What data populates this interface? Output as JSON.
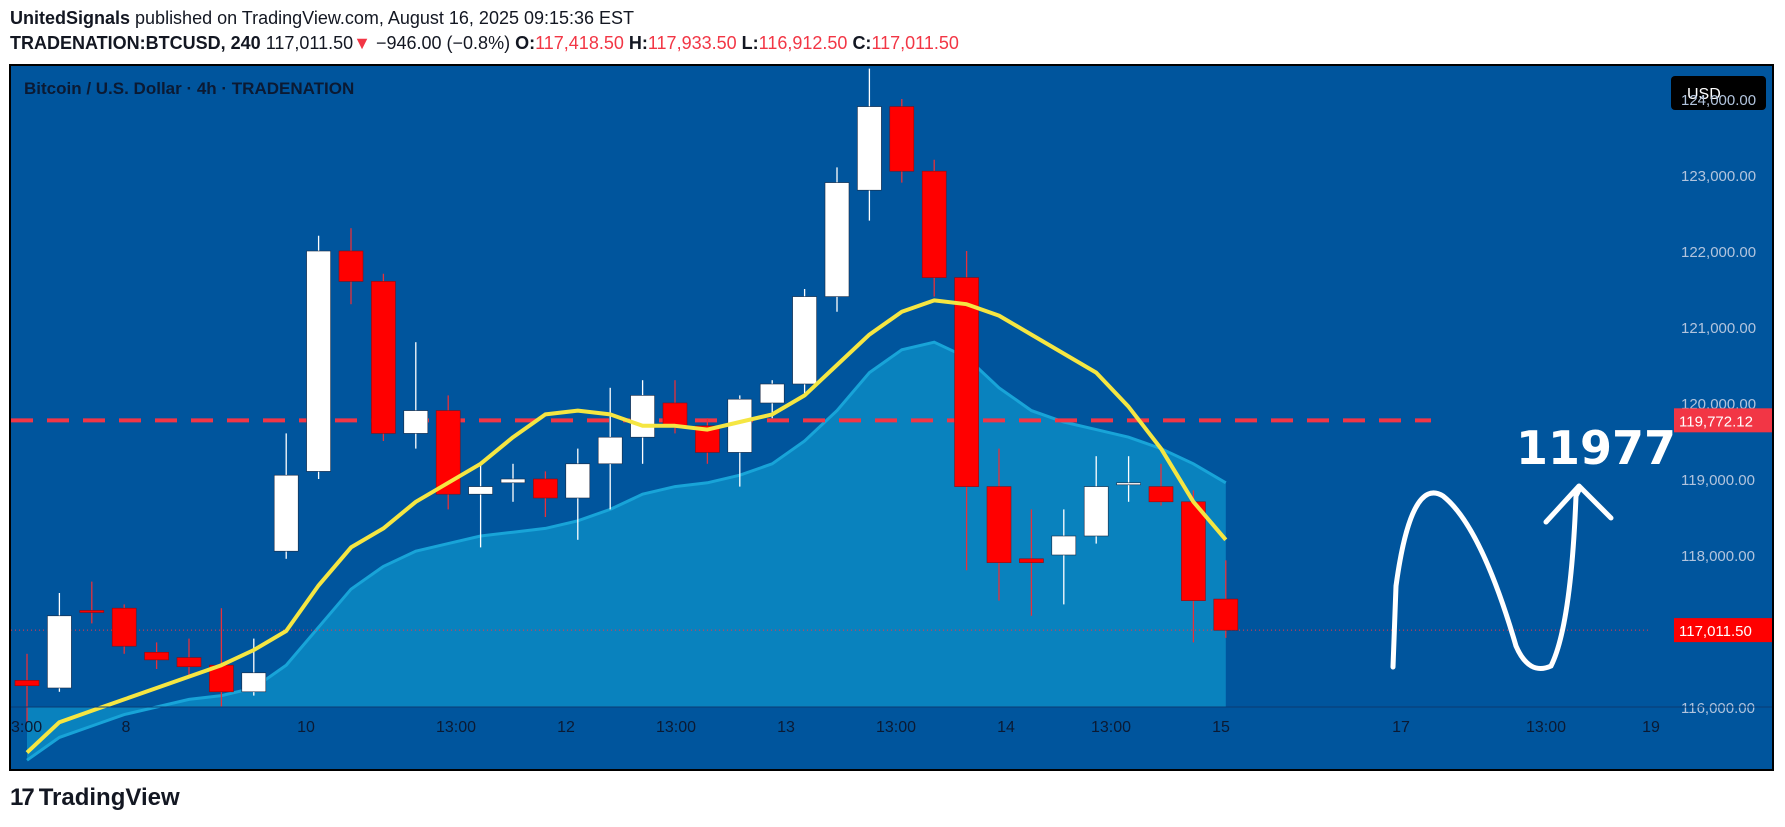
{
  "header": {
    "author": "UnitedSignals",
    "published_text": "published on TradingView.com, August 16, 2025 09:15:36 EST",
    "symbol": "TRADENATION:BTCUSD, 240",
    "last": "117,011.50",
    "change_arrow": "▼",
    "change": "−946.00 (−0.8%)",
    "o_label": "O:",
    "o_value": "117,418.50",
    "h_label": "H:",
    "h_value": "117,933.50",
    "l_label": "L:",
    "l_value": "116,912.50",
    "c_label": "C:",
    "c_value": "117,011.50"
  },
  "chart_title": "Bitcoin / U.S. Dollar · 4h · TRADENATION",
  "currency_button": "USD",
  "annotation_text": "11977",
  "footer_brand": "TradingView",
  "colors": {
    "background": "#00559d",
    "bull": "#ffffff",
    "bear": "#ff0000",
    "ma_fast": "#f5e642",
    "ma_area": "#0a8bc4",
    "level_line": "#f23645"
  },
  "chart_data": {
    "type": "candlestick",
    "ylim": [
      115400,
      124600
    ],
    "y_ticks": [
      116000,
      117000,
      118000,
      119000,
      120000,
      121000,
      122000,
      123000,
      124000
    ],
    "y_tick_labels": [
      "116,000.00",
      "117,000.00",
      "118,000.00",
      "119,000.00",
      "120,000.00",
      "121,000.00",
      "122,000.00",
      "123,000.00",
      "124,000.00"
    ],
    "x_tick_labels": [
      "3:00",
      "8",
      "10",
      "13:00",
      "12",
      "13:00",
      "13",
      "13:00",
      "14",
      "13:00",
      "15",
      "17",
      "13:00",
      "19"
    ],
    "candles": [
      {
        "o": 116350,
        "h": 116700,
        "l": 115800,
        "c": 116280
      },
      {
        "o": 116250,
        "h": 117500,
        "l": 116200,
        "c": 117200
      },
      {
        "o": 117270,
        "h": 117650,
        "l": 117100,
        "c": 117260
      },
      {
        "o": 117300,
        "h": 117350,
        "l": 116700,
        "c": 116800
      },
      {
        "o": 116720,
        "h": 116850,
        "l": 116500,
        "c": 116620
      },
      {
        "o": 116650,
        "h": 116900,
        "l": 116400,
        "c": 116530
      },
      {
        "o": 116550,
        "h": 117300,
        "l": 116000,
        "c": 116200
      },
      {
        "o": 116200,
        "h": 116900,
        "l": 116150,
        "c": 116450
      },
      {
        "o": 118050,
        "h": 119600,
        "l": 117950,
        "c": 119050
      },
      {
        "o": 119100,
        "h": 122200,
        "l": 119000,
        "c": 122000
      },
      {
        "o": 122000,
        "h": 122300,
        "l": 121300,
        "c": 121600
      },
      {
        "o": 121600,
        "h": 121700,
        "l": 119500,
        "c": 119600
      },
      {
        "o": 119600,
        "h": 120800,
        "l": 119400,
        "c": 119900
      },
      {
        "o": 119900,
        "h": 120100,
        "l": 118600,
        "c": 118800
      },
      {
        "o": 118800,
        "h": 119200,
        "l": 118100,
        "c": 118900
      },
      {
        "o": 118950,
        "h": 119200,
        "l": 118700,
        "c": 119000
      },
      {
        "o": 119000,
        "h": 119100,
        "l": 118500,
        "c": 118750
      },
      {
        "o": 118750,
        "h": 119400,
        "l": 118200,
        "c": 119200
      },
      {
        "o": 119200,
        "h": 120200,
        "l": 118600,
        "c": 119550
      },
      {
        "o": 119550,
        "h": 120300,
        "l": 119200,
        "c": 120100
      },
      {
        "o": 120000,
        "h": 120300,
        "l": 119600,
        "c": 119700
      },
      {
        "o": 119700,
        "h": 119800,
        "l": 119200,
        "c": 119350
      },
      {
        "o": 119350,
        "h": 120100,
        "l": 118900,
        "c": 120050
      },
      {
        "o": 120000,
        "h": 120300,
        "l": 119800,
        "c": 120250
      },
      {
        "o": 120250,
        "h": 121500,
        "l": 120100,
        "c": 121400
      },
      {
        "o": 121400,
        "h": 123100,
        "l": 121200,
        "c": 122900
      },
      {
        "o": 122800,
        "h": 124400,
        "l": 122400,
        "c": 123900
      },
      {
        "o": 123900,
        "h": 124000,
        "l": 122900,
        "c": 123050
      },
      {
        "o": 123050,
        "h": 123200,
        "l": 121400,
        "c": 121650
      },
      {
        "o": 121650,
        "h": 122000,
        "l": 117800,
        "c": 118900
      },
      {
        "o": 118900,
        "h": 119400,
        "l": 117400,
        "c": 117900
      },
      {
        "o": 117950,
        "h": 118600,
        "l": 117200,
        "c": 117900
      },
      {
        "o": 118000,
        "h": 118600,
        "l": 117350,
        "c": 118250
      },
      {
        "o": 118250,
        "h": 119300,
        "l": 118150,
        "c": 118900
      },
      {
        "o": 118950,
        "h": 119300,
        "l": 118700,
        "c": 118950
      },
      {
        "o": 118900,
        "h": 119200,
        "l": 118650,
        "c": 118700
      },
      {
        "o": 118700,
        "h": 118850,
        "l": 116850,
        "c": 117400
      },
      {
        "o": 117420,
        "h": 117930,
        "l": 116910,
        "c": 117010
      }
    ],
    "ma_fast": [
      115400,
      115800,
      115950,
      116100,
      116250,
      116400,
      116550,
      116750,
      117000,
      117600,
      118100,
      118350,
      118700,
      118950,
      119200,
      119550,
      119850,
      119900,
      119850,
      119700,
      119700,
      119650,
      119750,
      119850,
      120100,
      120500,
      120900,
      121200,
      121350,
      121300,
      121150,
      120900,
      120650,
      120400,
      119950,
      119400,
      118700,
      118200
    ],
    "ma_area": [
      115300,
      115600,
      115750,
      115900,
      116000,
      116100,
      116150,
      116250,
      116550,
      117050,
      117550,
      117850,
      118050,
      118150,
      118250,
      118300,
      118350,
      118450,
      118600,
      118800,
      118900,
      118950,
      119050,
      119200,
      119500,
      119900,
      120400,
      120700,
      120800,
      120600,
      120200,
      119900,
      119750,
      119650,
      119550,
      119400,
      119200,
      118950
    ],
    "level": 119772.12,
    "level_label": "119,772.12",
    "last_price_label": "117,011.50"
  }
}
